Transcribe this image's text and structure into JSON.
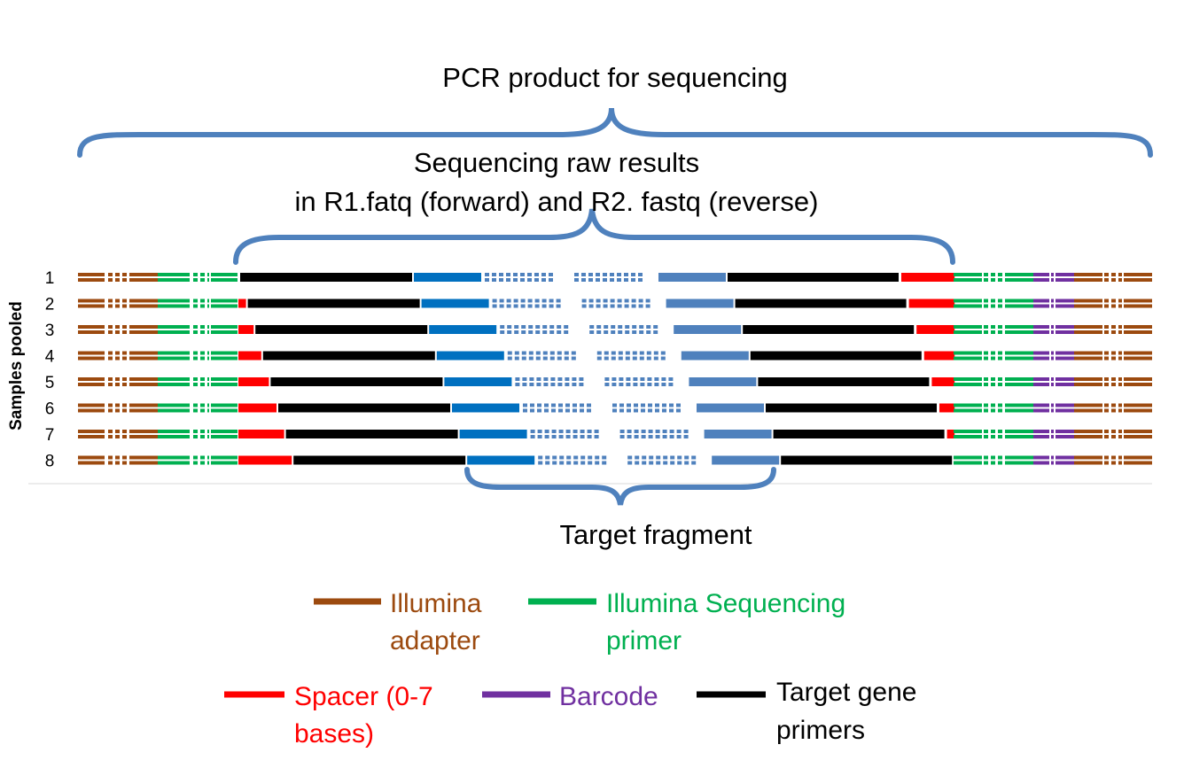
{
  "labels": {
    "pcr_product": "PCR product for sequencing",
    "raw_results_line1": "Sequencing raw results",
    "raw_results_line2": "in R1.fatq (forward) and R2. fastq (reverse)",
    "target_fragment": "Target fragment",
    "samples_pooled": "Samples pooled"
  },
  "rows": [
    {
      "label": "1",
      "spacer_left": 0,
      "spacer_right": 7
    },
    {
      "label": "2",
      "spacer_left": 1,
      "spacer_right": 6
    },
    {
      "label": "3",
      "spacer_left": 2,
      "spacer_right": 5
    },
    {
      "label": "4",
      "spacer_left": 3,
      "spacer_right": 4
    },
    {
      "label": "5",
      "spacer_left": 4,
      "spacer_right": 3
    },
    {
      "label": "6",
      "spacer_left": 5,
      "spacer_right": 2
    },
    {
      "label": "7",
      "spacer_left": 6,
      "spacer_right": 1
    },
    {
      "label": "8",
      "spacer_left": 7,
      "spacer_right": 0
    }
  ],
  "legend": [
    {
      "key": "adapter",
      "line1": "Illumina",
      "line2": "adapter",
      "color": "#9c4a0f"
    },
    {
      "key": "seq_primer",
      "line1": "Illumina Sequencing",
      "line2": "primer",
      "color": "#00b050"
    },
    {
      "key": "spacer",
      "line1": "Spacer (0-7",
      "line2": "bases)",
      "color": "#ff0000"
    },
    {
      "key": "barcode",
      "line1": "Barcode",
      "line2": "",
      "color": "#7030a0"
    },
    {
      "key": "target_primers",
      "line1": "Target gene",
      "line2": "primers",
      "color": "#000000"
    }
  ],
  "colors": {
    "adapter": "#9c4a0f",
    "seq_primer": "#00b050",
    "spacer": "#ff0000",
    "barcode": "#7030a0",
    "primer": "#000000",
    "read_forward": "#0070c0",
    "read_reverse": "#4f81bd",
    "brace": "#4f81bd"
  }
}
